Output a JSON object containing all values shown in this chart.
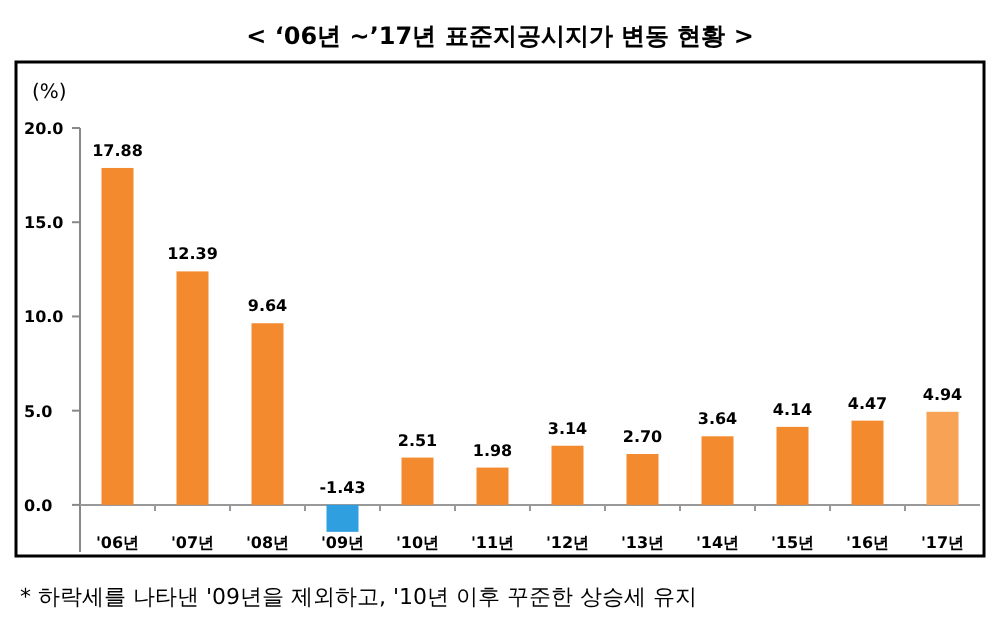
{
  "chart_data": {
    "type": "bar",
    "title": "< ‘06년 ~’17년 표준지공시지가 변동 현황 >",
    "ylabel": "(%)",
    "categories": [
      "'06년",
      "'07년",
      "'08년",
      "'09년",
      "'10년",
      "'11년",
      "'12년",
      "'13년",
      "'14년",
      "'15년",
      "'16년",
      "'17년"
    ],
    "values": [
      17.88,
      12.39,
      9.64,
      -1.43,
      2.51,
      1.98,
      3.14,
      2.7,
      3.64,
      4.14,
      4.47,
      4.94
    ],
    "colors": [
      "#f38b2e",
      "#f38b2e",
      "#f38b2e",
      "#2f9fdf",
      "#f38b2e",
      "#f38b2e",
      "#f38b2e",
      "#f38b2e",
      "#f38b2e",
      "#f38b2e",
      "#f38b2e",
      "#f7a255"
    ],
    "value_labels": [
      "17.88",
      "12.39",
      "9.64",
      "-1.43",
      "2.51",
      "1.98",
      "3.14",
      "2.70",
      "3.64",
      "4.14",
      "4.47",
      "4.94"
    ],
    "ylim": [
      -2.5,
      20
    ],
    "yticks": [
      {
        "value": 0,
        "label": "0.0"
      },
      {
        "value": 5,
        "label": "5.0"
      },
      {
        "value": 10,
        "label": "10.0"
      },
      {
        "value": 15,
        "label": "15.0"
      },
      {
        "value": 20,
        "label": "20.0"
      }
    ],
    "annotations": [
      "* 하락세를 나타낸 '09년을 제외하고, '10년 이후 꾸준한 상승세 유지"
    ]
  }
}
